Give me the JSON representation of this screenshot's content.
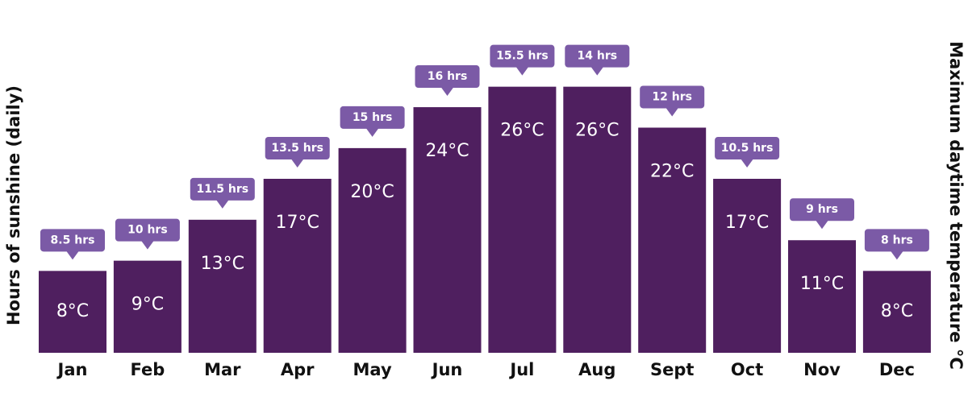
{
  "chart_data": {
    "type": "bar",
    "categories": [
      "Jan",
      "Feb",
      "Mar",
      "Apr",
      "May",
      "Jun",
      "Jul",
      "Aug",
      "Sept",
      "Oct",
      "Nov",
      "Dec"
    ],
    "y_label": "Hours of sunshine (daily)",
    "y2_label": "Maximum daytime temperature °C",
    "ylim": [
      0,
      34
    ],
    "series": [
      {
        "name": "Temperature",
        "color": "#4f1f5f",
        "values": [
          8,
          9,
          13,
          17,
          20,
          24,
          26,
          26,
          22,
          17,
          11,
          8
        ],
        "value_labels": [
          "8°C",
          "9°C",
          "13°C",
          "17°C",
          "20°C",
          "24°C",
          "26°C",
          "26°C",
          "22°C",
          "17°C",
          "11°C",
          "8°C"
        ]
      },
      {
        "name": "Sunshine",
        "color": "#7b5aa6",
        "values": [
          8.5,
          10,
          11.5,
          13.5,
          15,
          16,
          15.5,
          14,
          12,
          10.5,
          9,
          8
        ],
        "value_labels": [
          "8.5 hrs",
          "10 hrs",
          "11.5 hrs",
          "13.5 hrs",
          "15 hrs",
          "16 hrs",
          "15.5 hrs",
          "14 hrs",
          "12 hrs",
          "10.5 hrs",
          "9 hrs",
          "8 hrs"
        ]
      }
    ]
  }
}
